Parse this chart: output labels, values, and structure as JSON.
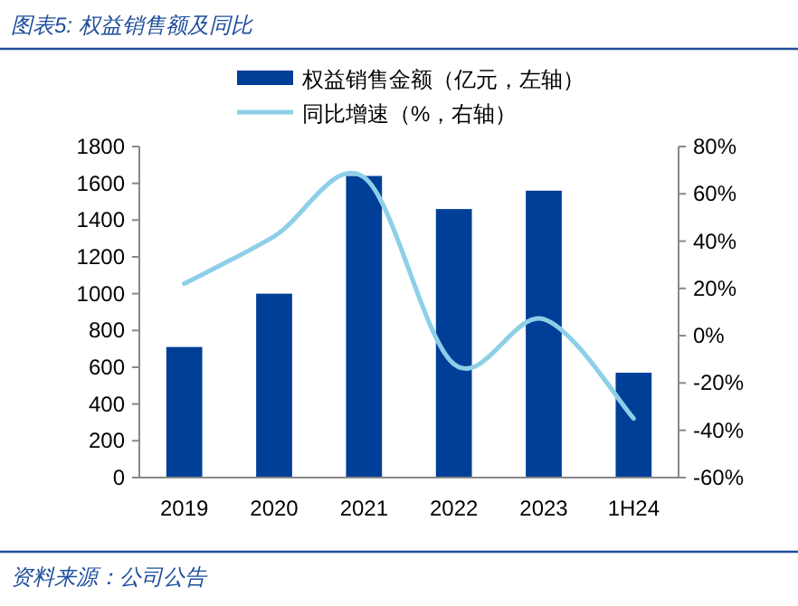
{
  "chart_data": {
    "type": "bar",
    "title": "图表5: 权益销售额及同比",
    "categories": [
      "2019",
      "2020",
      "2021",
      "2022",
      "2023",
      "1H24"
    ],
    "series": [
      {
        "name": "权益销售金额（亿元，左轴）",
        "color": "#003f98",
        "values": [
          710,
          1000,
          1640,
          1460,
          1560,
          570
        ]
      },
      {
        "name": "同比增速（%，右轴）",
        "type": "line",
        "axis": "y2",
        "color": "#8ecfe8",
        "values": [
          22,
          42,
          67,
          -12,
          7,
          -35
        ]
      }
    ],
    "ylim": [
      0,
      1800
    ],
    "yticks": [
      0,
      200,
      400,
      600,
      800,
      1000,
      1200,
      1400,
      1600,
      1800
    ],
    "y2lim": [
      -60,
      80
    ],
    "y2ticks": [
      {
        "value": -60,
        "label": "-60%"
      },
      {
        "value": -40,
        "label": "-40%"
      },
      {
        "value": -20,
        "label": "-20%"
      },
      {
        "value": 0,
        "label": "0%"
      },
      {
        "value": 20,
        "label": "20%"
      },
      {
        "value": 40,
        "label": "40%"
      },
      {
        "value": 60,
        "label": "60%"
      },
      {
        "value": 80,
        "label": "80%"
      }
    ],
    "legend": "top",
    "grid": false,
    "annotations": [
      "资料来源：公司公告"
    ]
  }
}
